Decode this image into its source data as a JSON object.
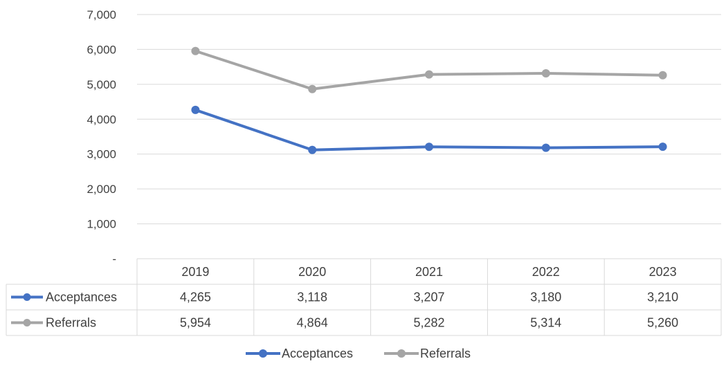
{
  "chart_data": {
    "type": "line",
    "categories": [
      "2019",
      "2020",
      "2021",
      "2022",
      "2023"
    ],
    "y_ticks": [
      "-",
      "1,000",
      "2,000",
      "3,000",
      "4,000",
      "5,000",
      "6,000",
      "7,000"
    ],
    "ylim": [
      0,
      7000
    ],
    "grid": true,
    "legend_position": "bottom",
    "series": [
      {
        "name": "Acceptances",
        "color": "#4472C4",
        "values": [
          4265,
          3118,
          3207,
          3180,
          3210
        ],
        "labels": [
          "4,265",
          "3,118",
          "3,207",
          "3,180",
          "3,210"
        ]
      },
      {
        "name": "Referrals",
        "color": "#A5A5A5",
        "values": [
          5954,
          4864,
          5282,
          5314,
          5260
        ],
        "labels": [
          "5,954",
          "4,864",
          "5,282",
          "5,314",
          "5,260"
        ]
      }
    ]
  }
}
